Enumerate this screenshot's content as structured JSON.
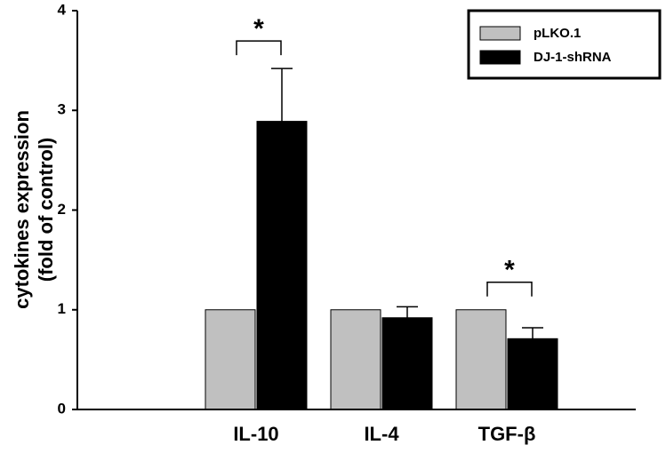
{
  "chart_data": {
    "type": "bar",
    "y_label": [
      "cytokines expression",
      "(fold of control)"
    ],
    "categories": [
      "IL-10",
      "IL-4",
      "TGF-β"
    ],
    "series": [
      {
        "name": "pLKO.1",
        "color": "#c0c0c0",
        "values": [
          1,
          1,
          1
        ]
      },
      {
        "name": "DJ-1-shRNA",
        "color": "#000000",
        "values": [
          2.89,
          0.92,
          0.71
        ],
        "errors": [
          0.53,
          0.11,
          0.11
        ]
      }
    ],
    "ylim": [
      0,
      4
    ],
    "yticks": [
      0,
      1,
      2,
      3,
      4
    ],
    "annotations": [
      {
        "text": "*",
        "category": "IL-10"
      },
      {
        "text": "*",
        "category": "TGF-β"
      }
    ],
    "legend": "top-right"
  }
}
